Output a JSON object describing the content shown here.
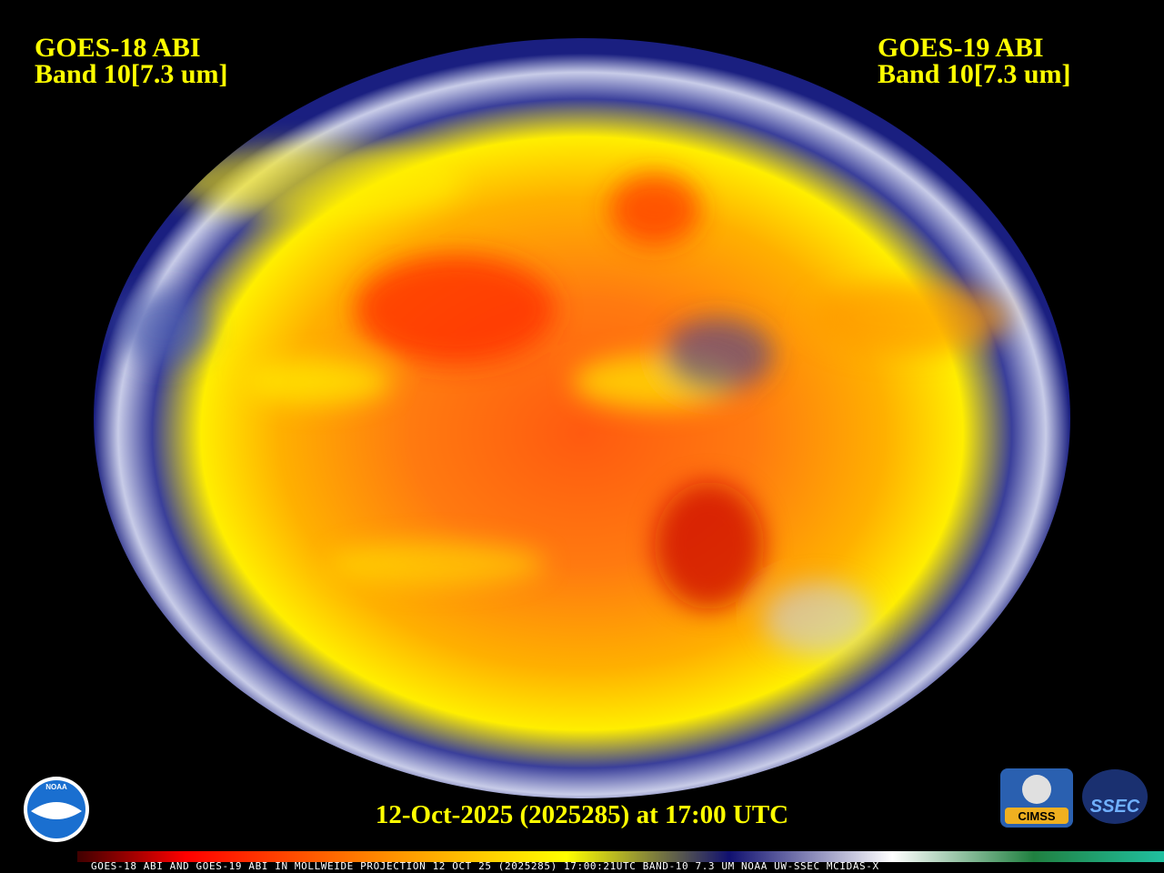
{
  "left_label": {
    "line1": "GOES-18 ABI",
    "line2": "Band 10[7.3 um]"
  },
  "right_label": {
    "line1": "GOES-19 ABI",
    "line2": "Band 10[7.3 um]"
  },
  "timestamp": "12-Oct-2025 (2025285) at 17:00 UTC",
  "footer": "GOES-18 ABI AND GOES-19 ABI IN MOLLWEIDE PROJECTION 12 OCT 25 (2025285) 17:00:21UTC BAND-10 7.3 UM NOAA UW-SSEC MCIDAS-X",
  "logos": {
    "noaa": "NOAA",
    "cimss": "CIMSS",
    "ssec": "SSEC"
  }
}
